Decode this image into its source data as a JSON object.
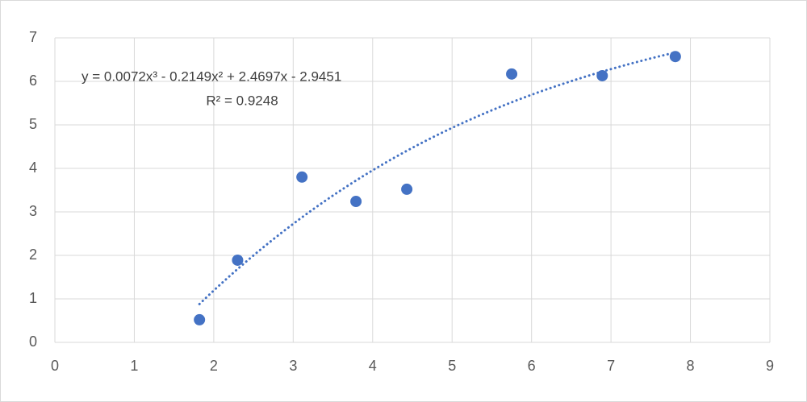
{
  "chart_data": {
    "type": "scatter",
    "x": [
      1.82,
      2.3,
      3.11,
      3.79,
      4.43,
      5.75,
      6.89,
      7.81
    ],
    "values": [
      0.52,
      1.89,
      3.8,
      3.24,
      3.52,
      6.17,
      6.13,
      6.57
    ],
    "color": "#4472c4",
    "xlim": [
      0,
      9
    ],
    "xticks": [
      0,
      1,
      2,
      3,
      4,
      5,
      6,
      7,
      8,
      9
    ],
    "ylim": [
      0,
      7
    ],
    "yticks": [
      0,
      1,
      2,
      3,
      4,
      5,
      6,
      7
    ],
    "grid": true,
    "trendline": {
      "type": "polynomial",
      "coefficients": [
        0.0072,
        -0.2149,
        2.4697,
        -2.9451
      ],
      "equation": "y = 0.0072x³ - 0.2149x² + 2.4697x - 2.9451",
      "r_squared": "R² = 0.9248"
    }
  }
}
